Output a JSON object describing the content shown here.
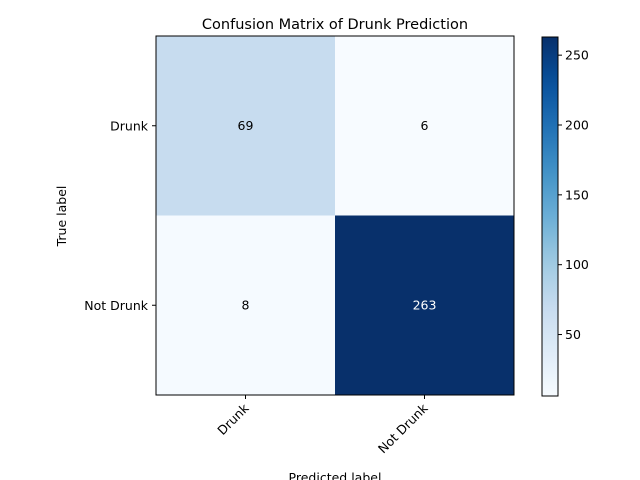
{
  "chart_data": {
    "type": "heatmap",
    "title": "Confusion Matrix of Drunk Prediction",
    "xlabel": "Predicted label",
    "ylabel": "True label",
    "x_categories": [
      "Drunk",
      "Not Drunk"
    ],
    "y_categories": [
      "Drunk",
      "Not Drunk"
    ],
    "values": [
      [
        69,
        6
      ],
      [
        8,
        263
      ]
    ],
    "colormap": "Blues",
    "colorbar": {
      "min": 6,
      "max": 263,
      "ticks": [
        50,
        100,
        150,
        200,
        250
      ],
      "tick_labels": [
        "50",
        "100",
        "150",
        "200",
        "250"
      ]
    },
    "x_tick_rotation_deg": 45,
    "grid": false
  }
}
